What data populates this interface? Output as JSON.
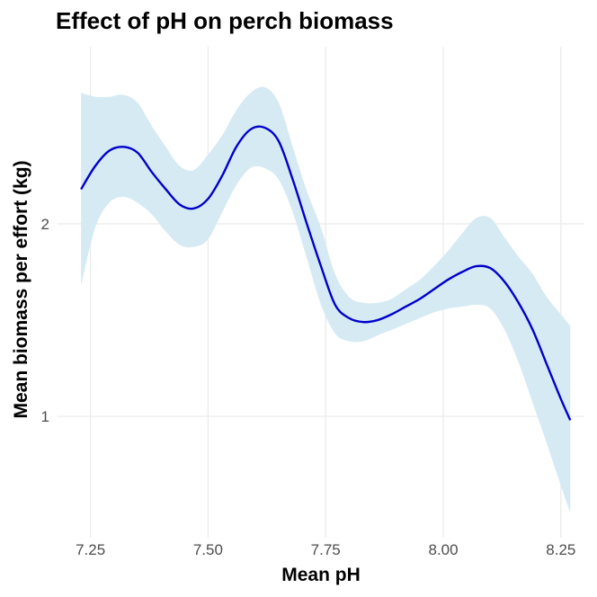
{
  "chart_data": {
    "type": "line",
    "title": "Effect of pH on perch biomass",
    "xlabel": "Mean pH",
    "ylabel": "Mean biomass per effort (kg)",
    "xlim": [
      7.18,
      8.3
    ],
    "ylim": [
      0.37,
      2.92
    ],
    "xticks": [
      7.25,
      7.5,
      7.75,
      8.0,
      8.25
    ],
    "xtick_labels": [
      "7.25",
      "7.50",
      "7.75",
      "8.00",
      "8.25"
    ],
    "yticks": [
      1,
      2
    ],
    "ytick_labels": [
      "1",
      "2"
    ],
    "grid": true,
    "colors": {
      "line": "#0000cc",
      "ribbon": "#d6eaf4",
      "grid": "#ebebeb"
    },
    "series": [
      {
        "x": [
          7.23,
          7.26,
          7.29,
          7.32,
          7.35,
          7.38,
          7.41,
          7.44,
          7.47,
          7.5,
          7.53,
          7.56,
          7.59,
          7.62,
          7.65,
          7.68,
          7.71,
          7.74,
          7.77,
          7.8,
          7.83,
          7.86,
          7.89,
          7.92,
          7.95,
          7.98,
          8.01,
          8.04,
          8.07,
          8.1,
          8.13,
          8.16,
          8.19,
          8.22,
          8.25,
          8.27
        ],
        "y": [
          2.18,
          2.3,
          2.38,
          2.4,
          2.37,
          2.27,
          2.18,
          2.1,
          2.08,
          2.13,
          2.25,
          2.4,
          2.49,
          2.5,
          2.43,
          2.23,
          2.0,
          1.78,
          1.58,
          1.51,
          1.49,
          1.5,
          1.53,
          1.57,
          1.61,
          1.66,
          1.71,
          1.75,
          1.78,
          1.77,
          1.7,
          1.59,
          1.45,
          1.27,
          1.09,
          0.98
        ],
        "lower": [
          1.68,
          1.98,
          2.11,
          2.14,
          2.11,
          2.05,
          1.96,
          1.89,
          1.88,
          1.92,
          2.06,
          2.2,
          2.29,
          2.29,
          2.23,
          2.06,
          1.82,
          1.58,
          1.43,
          1.39,
          1.39,
          1.42,
          1.45,
          1.48,
          1.51,
          1.54,
          1.56,
          1.57,
          1.58,
          1.56,
          1.45,
          1.28,
          1.07,
          0.86,
          0.64,
          0.5
        ],
        "upper": [
          2.68,
          2.66,
          2.66,
          2.67,
          2.63,
          2.51,
          2.4,
          2.3,
          2.28,
          2.36,
          2.46,
          2.59,
          2.68,
          2.71,
          2.63,
          2.4,
          2.17,
          1.98,
          1.74,
          1.62,
          1.59,
          1.59,
          1.61,
          1.66,
          1.71,
          1.78,
          1.86,
          1.95,
          2.03,
          2.03,
          1.93,
          1.83,
          1.74,
          1.62,
          1.53,
          1.47
        ]
      }
    ]
  }
}
